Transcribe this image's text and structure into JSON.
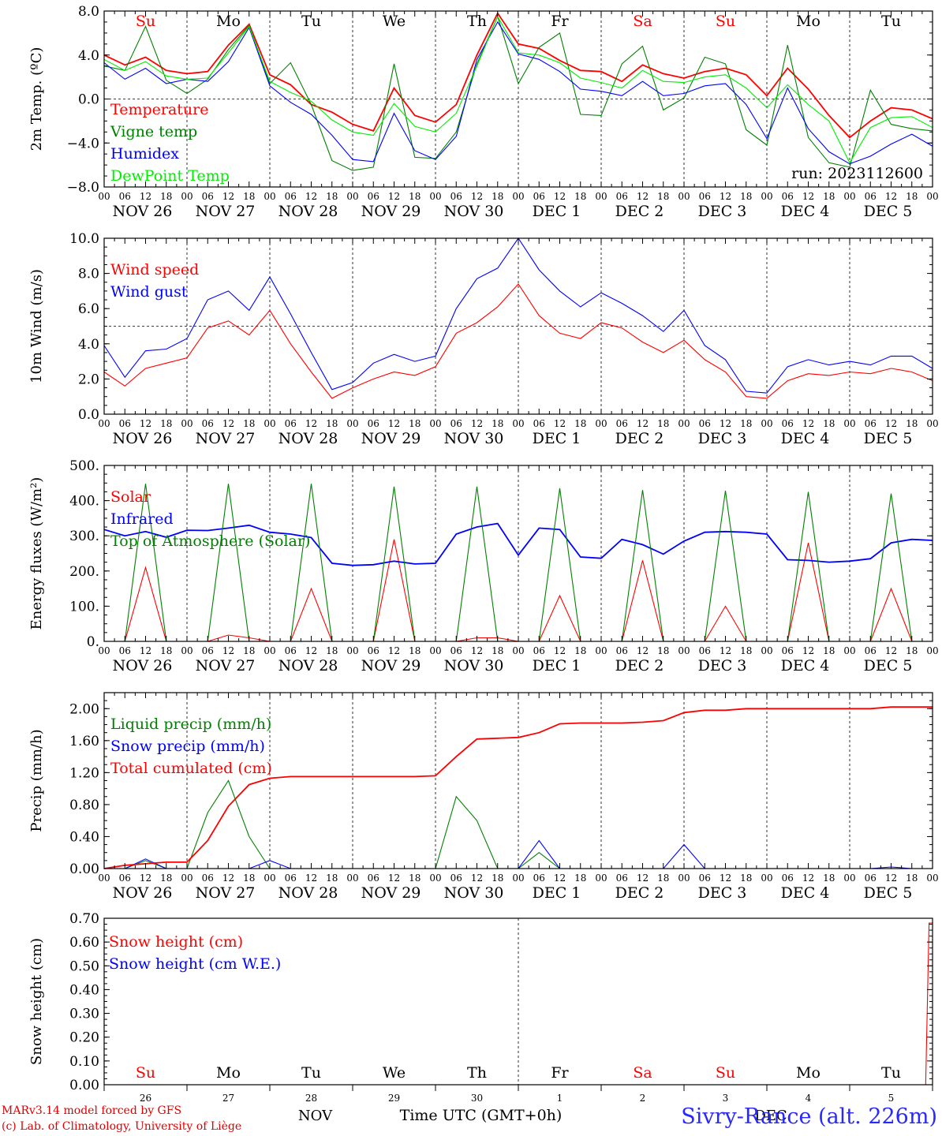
{
  "footer": {
    "credit_line1": "MARv3.14 model forced by GFS",
    "credit_line2": "(c) Lab. of Climatology, University of Liège",
    "station": "Sivry-Rance (alt. 226m)",
    "xaxis_title": "Time UTC (GMT+0h)",
    "month_left": "NOV",
    "month_right": "DEC"
  },
  "hour_ticks": [
    "00",
    "06",
    "12",
    "18"
  ],
  "date_labels": [
    "NOV 26",
    "NOV 27",
    "NOV 28",
    "NOV 29",
    "NOV 30",
    "DEC  1",
    "DEC  2",
    "DEC  3",
    "DEC  4",
    "DEC  5"
  ],
  "day_numbers": [
    "26",
    "27",
    "28",
    "29",
    "30",
    "1",
    "2",
    "3",
    "4",
    "5"
  ],
  "weekdays": [
    {
      "label": "Su",
      "weekend": true
    },
    {
      "label": "Mo",
      "weekend": false
    },
    {
      "label": "Tu",
      "weekend": false
    },
    {
      "label": "We",
      "weekend": false
    },
    {
      "label": "Th",
      "weekend": false
    },
    {
      "label": "Fr",
      "weekend": false
    },
    {
      "label": "Sa",
      "weekend": true
    },
    {
      "label": "Su",
      "weekend": true
    },
    {
      "label": "Mo",
      "weekend": false
    },
    {
      "label": "Tu",
      "weekend": false
    }
  ],
  "colors": {
    "red": "#ff0000",
    "green": "#008000",
    "blue": "#0000ff",
    "light_green": "#00ee00"
  },
  "chart_data": [
    {
      "type": "line",
      "ylabel": "2m Temp. (ºC)",
      "ylim": [
        -8,
        8
      ],
      "yticks": [
        "8.0",
        "4.0",
        "0.0",
        "−4.0",
        "−8.0"
      ],
      "ytick_values": [
        8,
        4,
        0,
        -4,
        -8
      ],
      "reference_line": 0,
      "annotation": "run: 2023112600",
      "x_unit": "hours since NOV 26 00 UTC",
      "x": [
        0,
        6,
        12,
        18,
        24,
        30,
        36,
        42,
        48,
        54,
        60,
        66,
        72,
        78,
        84,
        90,
        96,
        102,
        108,
        114,
        120,
        126,
        132,
        138,
        144,
        150,
        156,
        162,
        168,
        174,
        180,
        186,
        192,
        198,
        204,
        210,
        216,
        222,
        228,
        234,
        240
      ],
      "series": [
        {
          "name": "Temperature",
          "color": "#ff0000",
          "values": [
            4.0,
            3.1,
            3.8,
            2.6,
            2.3,
            2.5,
            4.9,
            6.8,
            2.2,
            1.3,
            -0.5,
            -1.2,
            -2.3,
            -2.9,
            1.0,
            -1.5,
            -2.1,
            -0.5,
            4.0,
            7.8,
            5.0,
            4.6,
            3.5,
            2.6,
            2.5,
            1.6,
            3.1,
            2.3,
            1.9,
            2.5,
            2.8,
            2.2,
            0.3,
            2.8,
            0.9,
            -1.5,
            -3.5,
            -2.0,
            -0.8,
            -1.0,
            -1.8
          ]
        },
        {
          "name": "Vigne temp",
          "color": "#008000",
          "values": [
            3.0,
            2.6,
            6.6,
            1.7,
            0.5,
            1.8,
            4.5,
            6.7,
            1.4,
            3.3,
            -0.5,
            -5.6,
            -6.5,
            -6.2,
            3.2,
            -5.3,
            -5.4,
            -3.0,
            3.2,
            7.5,
            1.4,
            4.7,
            6.0,
            -1.4,
            -1.5,
            3.2,
            4.8,
            -1.0,
            0.1,
            3.8,
            3.2,
            -2.8,
            -4.2,
            4.9,
            -3.5,
            -5.8,
            -6.2,
            0.8,
            -2.3,
            -2.7,
            -2.9
          ]
        },
        {
          "name": "Humidex",
          "color": "#0000ff",
          "values": [
            3.3,
            1.8,
            2.8,
            1.4,
            1.8,
            1.6,
            3.4,
            6.5,
            1.2,
            -0.3,
            -1.4,
            -3.3,
            -5.5,
            -5.7,
            -1.3,
            -4.7,
            -5.5,
            -3.4,
            3.6,
            7.0,
            4.1,
            3.6,
            2.5,
            0.9,
            0.7,
            0.3,
            1.6,
            0.3,
            0.5,
            1.2,
            1.4,
            -0.5,
            -3.6,
            1.0,
            -2.7,
            -4.8,
            -5.9,
            -5.2,
            -4.1,
            -3.2,
            -4.3
          ]
        },
        {
          "name": "DewPoint Temp",
          "color": "#00ee00",
          "values": [
            3.6,
            2.6,
            3.4,
            2.1,
            1.8,
            1.9,
            4.2,
            6.6,
            1.6,
            0.6,
            -0.2,
            -1.9,
            -3.0,
            -3.3,
            -0.4,
            -2.5,
            -3.0,
            -1.3,
            3.0,
            7.5,
            4.2,
            4.0,
            3.3,
            1.9,
            1.5,
            1.0,
            2.6,
            1.6,
            1.5,
            2.0,
            2.2,
            1.0,
            -0.8,
            1.3,
            -0.5,
            -2.0,
            -5.8,
            -2.6,
            -1.7,
            -1.6,
            -2.6
          ]
        }
      ]
    },
    {
      "type": "line",
      "ylabel": "10m Wind (m/s)",
      "ylim": [
        0,
        10
      ],
      "yticks": [
        "10.0",
        "8.0",
        "6.0",
        "4.0",
        "2.0",
        "0.0"
      ],
      "ytick_values": [
        10,
        8,
        6,
        4,
        2,
        0
      ],
      "reference_line": 5,
      "x_unit": "hours since NOV 26 00 UTC",
      "x": [
        0,
        6,
        12,
        18,
        24,
        30,
        36,
        42,
        48,
        54,
        60,
        66,
        72,
        78,
        84,
        90,
        96,
        102,
        108,
        114,
        120,
        126,
        132,
        138,
        144,
        150,
        156,
        162,
        168,
        174,
        180,
        186,
        192,
        198,
        204,
        210,
        216,
        222,
        228,
        234,
        240
      ],
      "series": [
        {
          "name": "Wind speed",
          "color": "#ff0000",
          "values": [
            2.4,
            1.6,
            2.6,
            2.9,
            3.2,
            4.9,
            5.3,
            4.5,
            5.9,
            4.0,
            2.4,
            0.9,
            1.5,
            2.0,
            2.4,
            2.2,
            2.7,
            4.6,
            5.2,
            6.1,
            7.4,
            5.6,
            4.6,
            4.3,
            5.2,
            4.9,
            4.1,
            3.5,
            4.2,
            3.1,
            2.4,
            1.0,
            0.9,
            1.9,
            2.3,
            2.2,
            2.4,
            2.3,
            2.6,
            2.4,
            1.9
          ]
        },
        {
          "name": "Wind gust",
          "color": "#0000ff",
          "values": [
            3.9,
            2.1,
            3.6,
            3.7,
            4.3,
            6.5,
            7.0,
            5.9,
            7.8,
            5.7,
            3.5,
            1.4,
            1.8,
            2.9,
            3.4,
            3.0,
            3.3,
            6.0,
            7.7,
            8.3,
            10.0,
            8.2,
            7.0,
            6.1,
            6.9,
            6.3,
            5.6,
            4.7,
            5.9,
            3.9,
            3.1,
            1.3,
            1.2,
            2.7,
            3.1,
            2.8,
            3.0,
            2.8,
            3.3,
            3.3,
            2.6
          ]
        }
      ]
    },
    {
      "type": "line",
      "ylabel": "Energy fluxes (W/m²)",
      "ylim": [
        0,
        500
      ],
      "yticks": [
        "500.",
        "400.",
        "300.",
        "200.",
        "100.",
        "0."
      ],
      "ytick_values": [
        500,
        400,
        300,
        200,
        100,
        0
      ],
      "x_unit": "hours since NOV 26 00 UTC",
      "x": [
        0,
        6,
        12,
        18,
        24,
        30,
        36,
        42,
        48,
        54,
        60,
        66,
        72,
        78,
        84,
        90,
        96,
        102,
        108,
        114,
        120,
        126,
        132,
        138,
        144,
        150,
        156,
        162,
        168,
        174,
        180,
        186,
        192,
        198,
        204,
        210,
        216,
        222,
        228,
        234,
        240
      ],
      "series": [
        {
          "name": "Solar",
          "color": "#ff0000",
          "values": [
            0,
            0,
            210,
            0,
            0,
            0,
            18,
            10,
            0,
            0,
            150,
            0,
            0,
            0,
            290,
            0,
            0,
            0,
            10,
            10,
            0,
            0,
            130,
            0,
            0,
            0,
            230,
            0,
            0,
            0,
            100,
            0,
            0,
            0,
            280,
            0,
            0,
            0,
            150,
            0,
            0
          ]
        },
        {
          "name": "Infrared",
          "color": "#0000ff",
          "values": [
            318,
            300,
            312,
            296,
            316,
            315,
            322,
            330,
            310,
            305,
            295,
            222,
            216,
            218,
            228,
            220,
            222,
            305,
            325,
            335,
            245,
            322,
            318,
            240,
            236,
            290,
            275,
            248,
            285,
            310,
            312,
            310,
            305,
            232,
            230,
            225,
            228,
            235,
            280,
            290,
            287
          ]
        },
        {
          "name": "Top of Atmosphere (Solar)",
          "color": "#008000",
          "values": [
            0,
            0,
            448,
            0,
            0,
            0,
            448,
            0,
            0,
            0,
            448,
            0,
            0,
            0,
            440,
            0,
            0,
            0,
            440,
            0,
            0,
            0,
            435,
            0,
            0,
            0,
            430,
            0,
            0,
            0,
            428,
            0,
            0,
            0,
            425,
            0,
            0,
            0,
            420,
            0,
            0
          ]
        }
      ]
    },
    {
      "type": "line",
      "ylabel": "Precip (mm/h)",
      "ylim": [
        0,
        2.2
      ],
      "yticks": [
        "2.00",
        "1.60",
        "1.20",
        "0.80",
        "0.40",
        "0.00"
      ],
      "ytick_values": [
        2.0,
        1.6,
        1.2,
        0.8,
        0.4,
        0.0
      ],
      "x_unit": "hours since NOV 26 00 UTC",
      "x": [
        0,
        6,
        12,
        18,
        24,
        30,
        36,
        42,
        48,
        54,
        60,
        66,
        72,
        78,
        84,
        90,
        96,
        102,
        108,
        114,
        120,
        126,
        132,
        138,
        144,
        150,
        156,
        162,
        168,
        174,
        180,
        186,
        192,
        198,
        204,
        210,
        216,
        222,
        228,
        234,
        240
      ],
      "series": [
        {
          "name": "Liquid precip (mm/h)",
          "color": "#008000",
          "values": [
            0,
            0,
            0.1,
            0,
            0,
            0.7,
            1.1,
            0.4,
            0,
            0,
            0,
            0,
            0,
            0,
            0,
            0,
            0,
            0.9,
            0.6,
            0,
            0,
            0.2,
            0,
            0,
            0,
            0,
            0,
            0,
            0,
            0,
            0,
            0,
            0,
            0,
            0,
            0,
            0,
            0,
            0,
            0,
            0
          ]
        },
        {
          "name": "Snow precip (mm/h)",
          "color": "#0000ff",
          "values": [
            0,
            0,
            0.12,
            0,
            0,
            0,
            0,
            0,
            0.1,
            0,
            0,
            0,
            0,
            0,
            0,
            0,
            0,
            0,
            0,
            0,
            0,
            0.35,
            0,
            0,
            0,
            0,
            0,
            0,
            0.3,
            0,
            0,
            0,
            0,
            0,
            0,
            0,
            0,
            0,
            0.02,
            0,
            0
          ]
        },
        {
          "name": "Total cumulated (cm)",
          "color": "#ff0000",
          "values": [
            0,
            0.04,
            0.06,
            0.08,
            0.08,
            0.35,
            0.78,
            1.05,
            1.13,
            1.15,
            1.15,
            1.15,
            1.15,
            1.15,
            1.15,
            1.15,
            1.16,
            1.4,
            1.62,
            1.63,
            1.64,
            1.7,
            1.81,
            1.82,
            1.82,
            1.82,
            1.83,
            1.85,
            1.95,
            1.98,
            1.98,
            2.0,
            2.0,
            2.0,
            2.0,
            2.0,
            2.0,
            2.0,
            2.02,
            2.02,
            2.02
          ]
        }
      ]
    },
    {
      "type": "line",
      "ylabel": "Snow height (cm)",
      "ylim": [
        0,
        0.7
      ],
      "yticks": [
        "0.70",
        "0.60",
        "0.50",
        "0.40",
        "0.30",
        "0.20",
        "0.10",
        "0.00"
      ],
      "ytick_values": [
        0.7,
        0.6,
        0.5,
        0.4,
        0.3,
        0.2,
        0.1,
        0.0
      ],
      "x_unit": "hours since NOV 26 00 UTC",
      "x": [
        0,
        234,
        238,
        239,
        240
      ],
      "series": [
        {
          "name": "Snow height (cm)",
          "color": "#ff0000",
          "values": [
            0,
            0,
            0,
            0.68,
            0.68
          ]
        },
        {
          "name": "Snow height (cm W.E.)",
          "color": "#0000ff",
          "values": [
            0,
            0,
            0,
            0,
            0
          ]
        }
      ]
    }
  ]
}
